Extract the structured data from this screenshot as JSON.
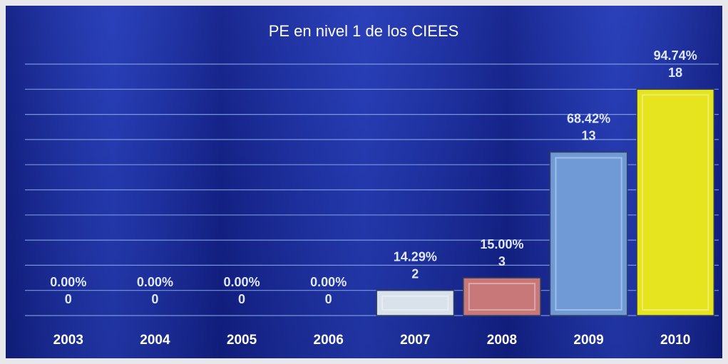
{
  "chart_data": {
    "type": "bar",
    "title": "PE en nivel 1 de los CIEES",
    "categories": [
      "2003",
      "2004",
      "2005",
      "2006",
      "2007",
      "2008",
      "2009",
      "2010"
    ],
    "values": [
      0,
      0,
      0,
      0,
      2,
      3,
      13,
      18
    ],
    "percent_labels": [
      "0.00%",
      "0.00%",
      "0.00%",
      "0.00%",
      "14.29%",
      "15.00%",
      "68.42%",
      "94.74%"
    ],
    "colors": [
      null,
      null,
      null,
      null,
      "#d9e2ea",
      "#c87878",
      "#6f9ad6",
      "#e6e41e"
    ],
    "ylim": [
      0,
      20
    ],
    "yticks": [
      0,
      2,
      4,
      6,
      8,
      10,
      12,
      14,
      16,
      18,
      20
    ],
    "grid": true
  }
}
